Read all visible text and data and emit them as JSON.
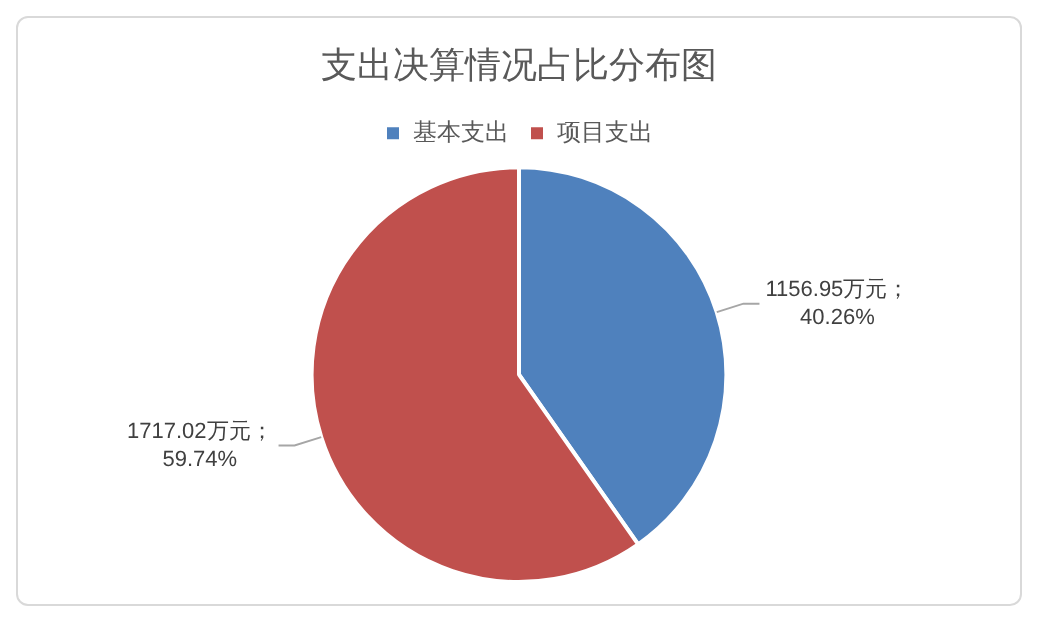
{
  "chart_data": {
    "type": "pie",
    "title": "支出决算情况占比分布图",
    "categories": [
      "基本支出",
      "项目支出"
    ],
    "values": [
      1156.95,
      1717.02
    ],
    "colors": [
      "#4f81bd",
      "#c0504d"
    ],
    "value_labels": [
      "1156.95万元；\n40.26%",
      "1717.02万元；\n59.74%"
    ],
    "legend": "top"
  }
}
